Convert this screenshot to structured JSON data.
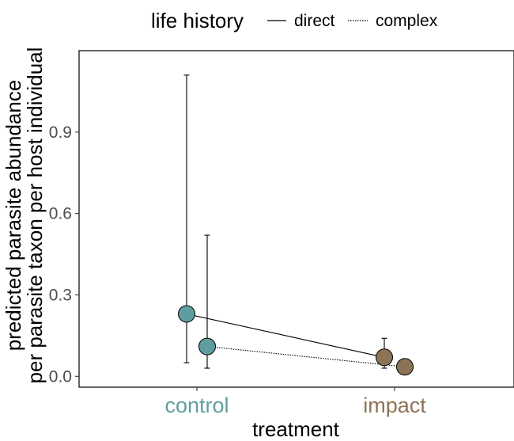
{
  "chart_data": {
    "type": "scatter",
    "xlabel": "treatment",
    "ylabel_lines": [
      "predicted parasite abundance",
      "per parasite taxon per host individual"
    ],
    "categories": [
      "control",
      "impact"
    ],
    "category_colors": [
      "#5f9ea0",
      "#8b7355"
    ],
    "ylim": [
      -0.04,
      1.2
    ],
    "yticks": [
      0.0,
      0.3,
      0.6,
      0.9
    ],
    "ytick_labels": [
      "0.0",
      "0.3",
      "0.6",
      "0.9"
    ],
    "grid": false,
    "legend": {
      "title": "life history",
      "position": "top",
      "entries": [
        {
          "label": "direct",
          "line": "solid"
        },
        {
          "label": "complex",
          "line": "dotted"
        }
      ]
    },
    "series": [
      {
        "name": "direct",
        "line": "solid",
        "points": [
          {
            "category": "control",
            "y": 0.23,
            "ymin": 0.05,
            "ymax": 1.11
          },
          {
            "category": "impact",
            "y": 0.07,
            "ymin": 0.03,
            "ymax": 0.14
          }
        ]
      },
      {
        "name": "complex",
        "line": "dotted",
        "points": [
          {
            "category": "control",
            "y": 0.11,
            "ymin": 0.03,
            "ymax": 0.52
          },
          {
            "category": "impact",
            "y": 0.035,
            "ymin": 0.02,
            "ymax": 0.045
          }
        ]
      }
    ]
  }
}
